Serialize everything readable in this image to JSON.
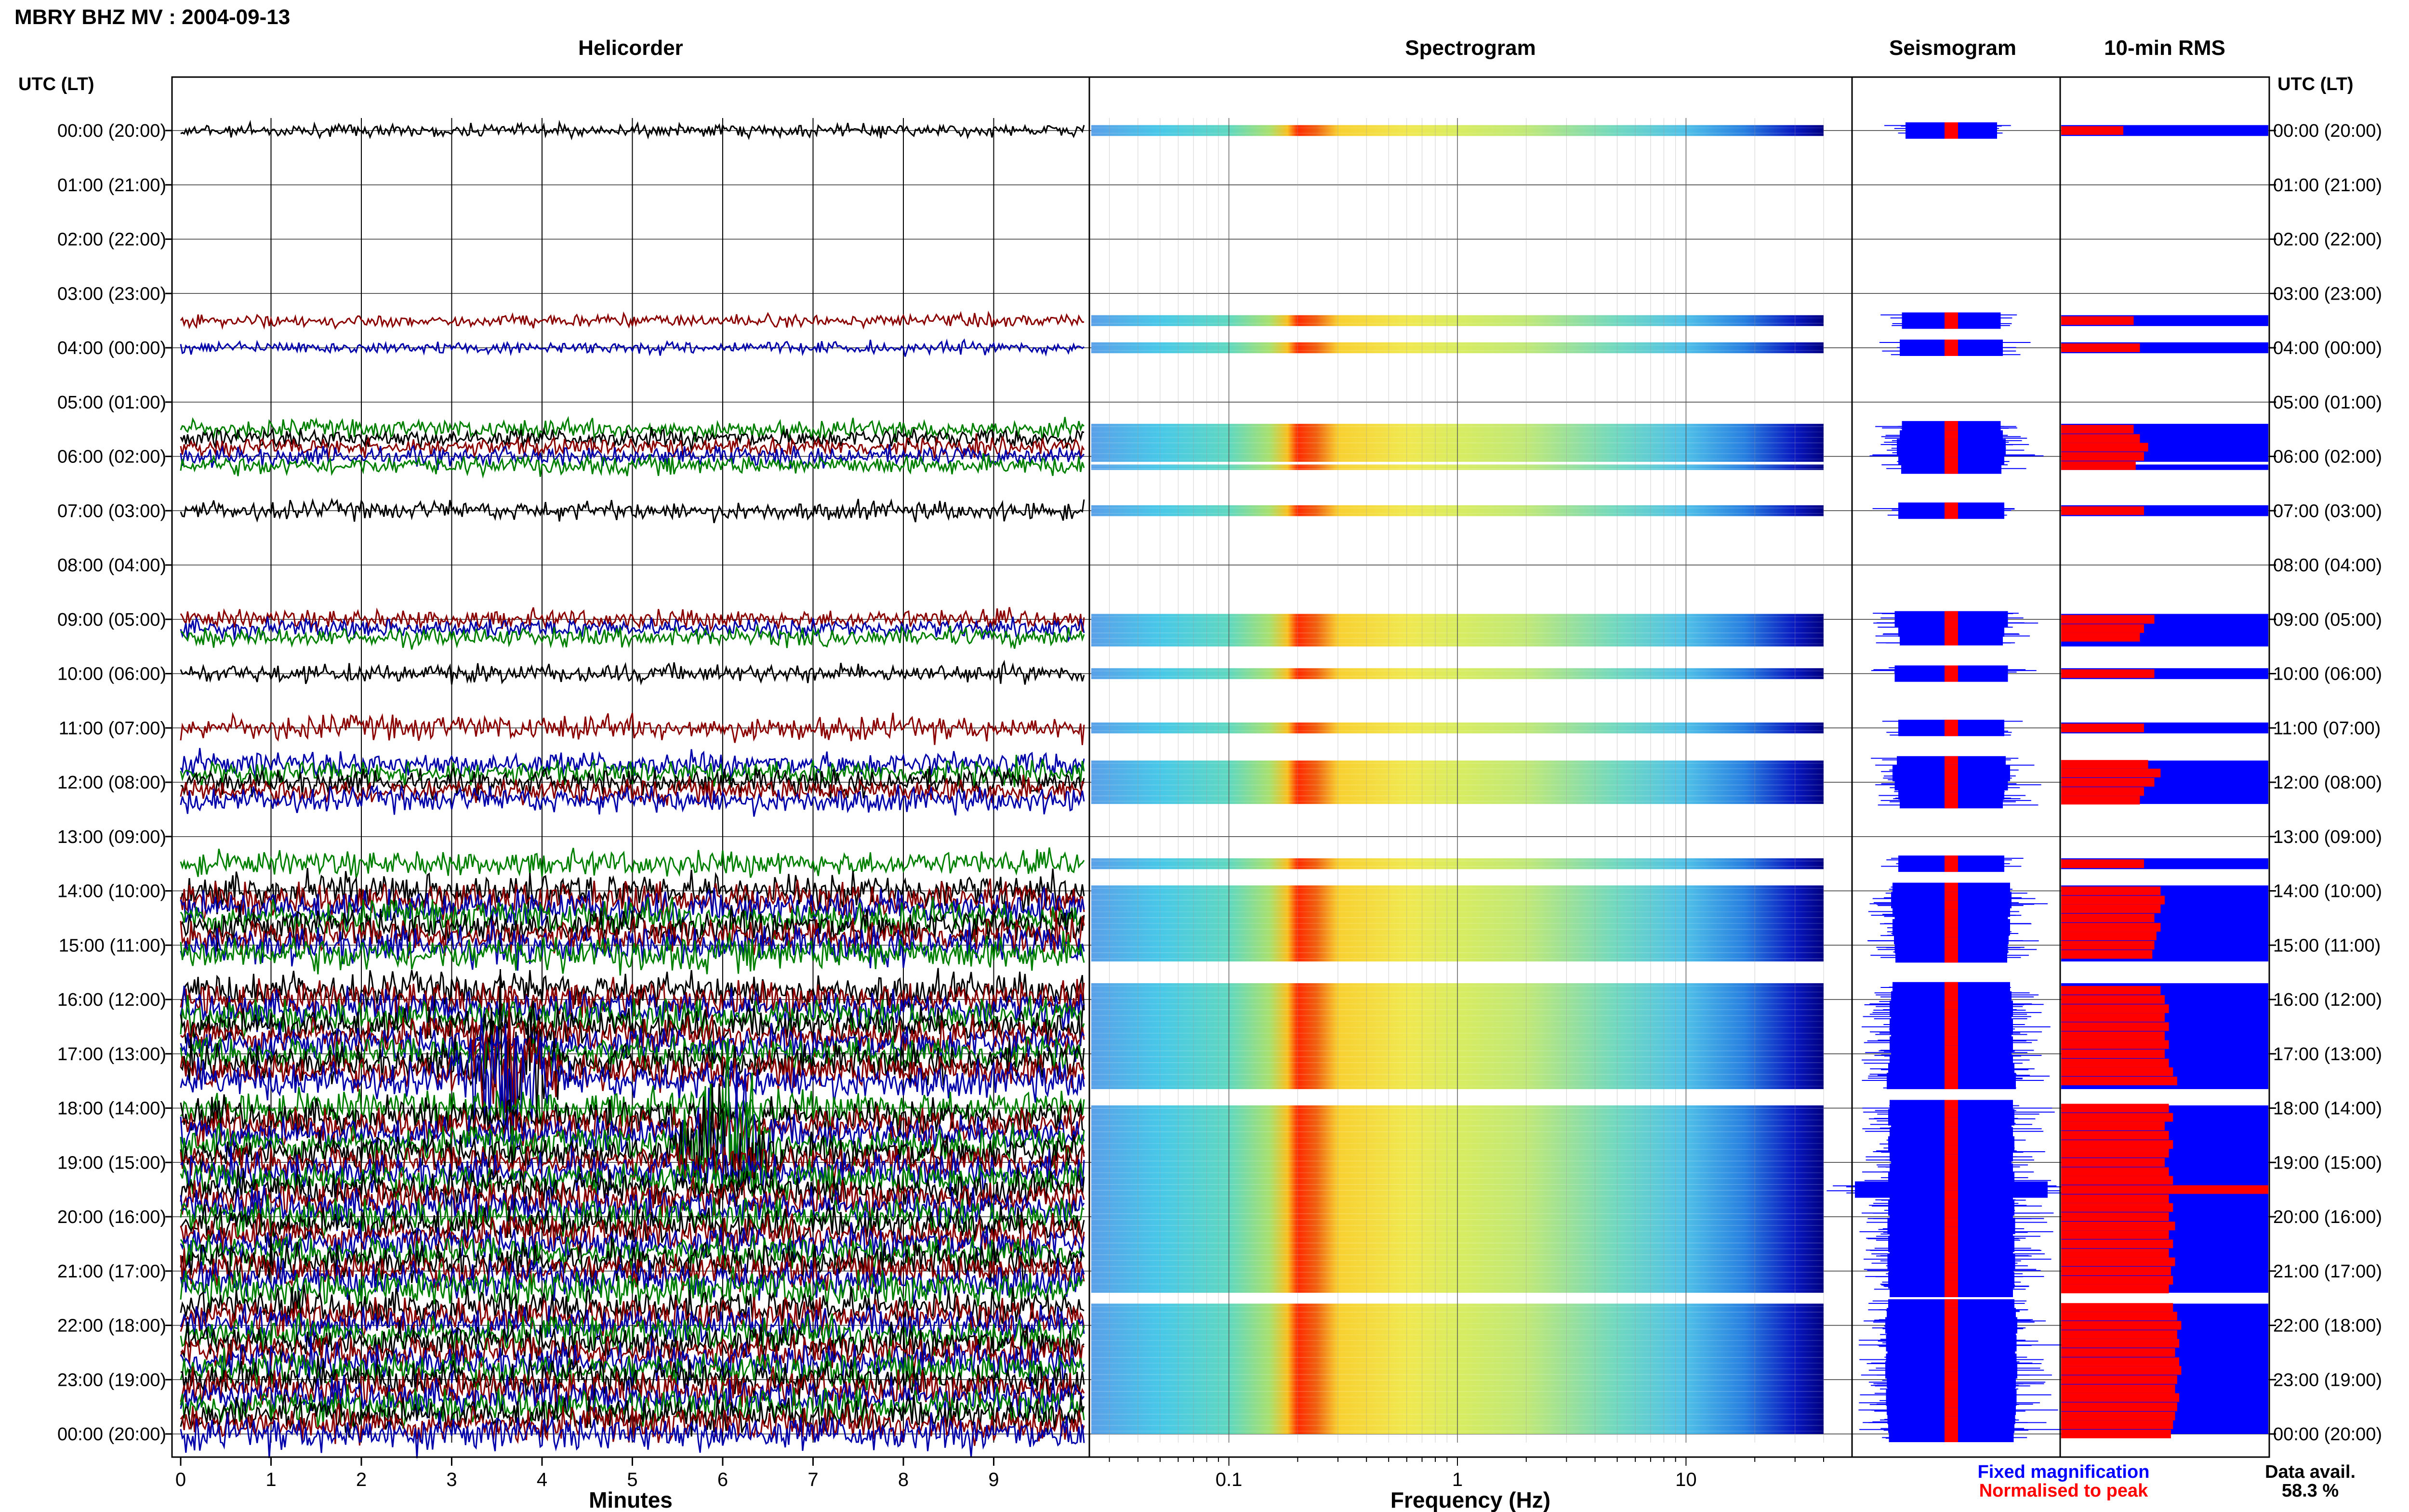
{
  "header": {
    "title": "MBRY BHZ MV : 2004-09-13"
  },
  "panels": {
    "helicorder": "Helicorder",
    "spectrogram": "Spectrogram",
    "seismogram": "Seismogram",
    "rms": "10-min RMS"
  },
  "axis_labels": {
    "time_left": "UTC (LT)",
    "time_right": "UTC (LT)",
    "minutes": "Minutes",
    "frequency": "Frequency (Hz)"
  },
  "legend": {
    "fixed": "Fixed magnification",
    "normalised": "Normalised to peak",
    "fixed_color": "#0000ff",
    "normalised_color": "#ff0000"
  },
  "availability": {
    "label": "Data avail.",
    "value": "58.3 %"
  },
  "colors": {
    "trace_cycle": [
      "#000000",
      "#8b0000",
      "#0000aa",
      "#008000"
    ],
    "spectrogram_peak": "#ff2a00",
    "seismogram_fixed": "#0000ff",
    "seismogram_normalised": "#ff0000"
  },
  "chart_data": {
    "type": "helicorder",
    "time_ticks": [
      "00:00 (20:00)",
      "01:00 (21:00)",
      "02:00 (22:00)",
      "03:00 (23:00)",
      "04:00 (00:00)",
      "05:00 (01:00)",
      "06:00 (02:00)",
      "07:00 (03:00)",
      "08:00 (04:00)",
      "09:00 (05:00)",
      "10:00 (06:00)",
      "11:00 (07:00)",
      "12:00 (08:00)",
      "13:00 (09:00)",
      "14:00 (10:00)",
      "15:00 (11:00)",
      "16:00 (12:00)",
      "17:00 (13:00)",
      "18:00 (14:00)",
      "19:00 (15:00)",
      "20:00 (16:00)",
      "21:00 (17:00)",
      "22:00 (18:00)",
      "23:00 (19:00)",
      "00:00 (20:00)"
    ],
    "minute_ticks": [
      "0",
      "1",
      "2",
      "3",
      "4",
      "5",
      "6",
      "7",
      "8",
      "9"
    ],
    "minute_range": [
      0,
      10
    ],
    "frequency_ticks": [
      "0.1",
      "1",
      "10"
    ],
    "frequency_range_hz": [
      0.025,
      40
    ],
    "hours_range": [
      0,
      24
    ],
    "data_rows_hours": [
      0.0,
      3.5,
      4.0,
      5.5,
      5.67,
      5.83,
      6.0,
      6.17,
      7.0,
      9.0,
      9.17,
      9.33,
      10.0,
      11.0,
      11.67,
      11.83,
      12.0,
      12.17,
      12.33,
      13.5,
      14.0,
      14.17,
      14.33,
      14.5,
      14.67,
      14.83,
      15.0,
      15.17,
      15.83,
      16.0,
      16.17,
      16.33,
      16.5,
      16.67,
      16.83,
      17.0,
      17.17,
      17.33,
      17.5,
      18.0,
      18.17,
      18.33,
      18.5,
      18.67,
      18.83,
      19.0,
      19.17,
      19.33,
      19.5,
      19.67,
      19.83,
      20.0,
      20.17,
      20.33,
      20.5,
      20.67,
      20.83,
      21.0,
      21.17,
      21.33,
      21.67,
      21.83,
      22.0,
      22.17,
      22.33,
      22.5,
      22.67,
      22.83,
      23.0,
      23.17,
      23.33,
      23.5,
      23.67,
      23.83,
      24.0
    ],
    "spectrogram_blocks_hours": [
      [
        -0.1,
        0.1
      ],
      [
        3.4,
        3.6
      ],
      [
        3.9,
        4.1
      ],
      [
        5.4,
        6.1
      ],
      [
        6.15,
        6.25
      ],
      [
        6.9,
        7.1
      ],
      [
        8.9,
        9.5
      ],
      [
        9.9,
        10.1
      ],
      [
        10.9,
        11.1
      ],
      [
        11.6,
        12.4
      ],
      [
        13.4,
        13.6
      ],
      [
        13.9,
        15.3
      ],
      [
        15.7,
        17.65
      ],
      [
        17.95,
        21.4
      ],
      [
        21.6,
        24.0
      ]
    ],
    "rms_normalised": [
      0.3,
      0.35,
      0.38,
      0.35,
      0.38,
      0.42,
      0.4,
      0.36,
      0.4,
      0.45,
      0.4,
      0.38,
      0.45,
      0.4,
      0.42,
      0.48,
      0.45,
      0.4,
      0.38,
      0.4,
      0.48,
      0.5,
      0.48,
      0.45,
      0.48,
      0.46,
      0.45,
      0.44,
      0.48,
      0.5,
      0.52,
      0.5,
      0.52,
      0.5,
      0.52,
      0.5,
      0.52,
      0.54,
      0.56,
      0.52,
      0.54,
      0.5,
      0.52,
      0.54,
      0.52,
      0.5,
      0.52,
      0.54,
      1.0,
      0.52,
      0.54,
      0.52,
      0.55,
      0.52,
      0.54,
      0.52,
      0.55,
      0.53,
      0.54,
      0.52,
      0.54,
      0.56,
      0.58,
      0.56,
      0.57,
      0.55,
      0.57,
      0.58,
      0.56,
      0.55,
      0.57,
      0.56,
      0.55,
      0.54,
      0.53
    ],
    "events": [
      {
        "hour": 17.33,
        "minute": 3.6,
        "channel": "helicorder"
      },
      {
        "hour": 18.67,
        "minute": 6.05,
        "channel": "helicorder"
      }
    ],
    "grid": true
  }
}
